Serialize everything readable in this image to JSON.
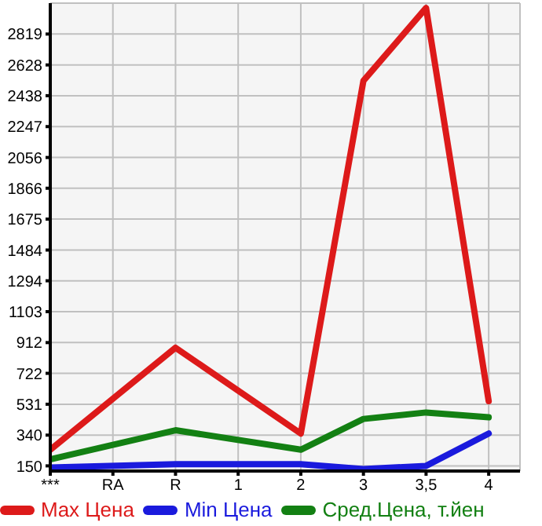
{
  "chart_data": {
    "type": "line",
    "categories": [
      "***",
      "RA",
      "R",
      "1",
      "2",
      "3",
      "3,5",
      "4"
    ],
    "series": [
      {
        "name": "Max Цена",
        "color": "#dd1a1a",
        "values": [
          250,
          null,
          880,
          null,
          350,
          2530,
          2980,
          550
        ]
      },
      {
        "name": "Min Цена",
        "color": "#1a1add",
        "values": [
          140,
          null,
          160,
          null,
          160,
          130,
          150,
          350
        ]
      },
      {
        "name": "Сред.Цена, т.йен",
        "color": "#138013",
        "values": [
          190,
          null,
          370,
          null,
          250,
          440,
          480,
          450
        ]
      }
    ],
    "ylim": [
      118,
      3010
    ],
    "yticks": [
      150,
      340,
      531,
      722,
      912,
      1103,
      1294,
      1484,
      1675,
      1866,
      2056,
      2247,
      2438,
      2628,
      2819
    ],
    "grid": true,
    "legend": "bottom",
    "marker": "none",
    "line_style": "solid"
  }
}
